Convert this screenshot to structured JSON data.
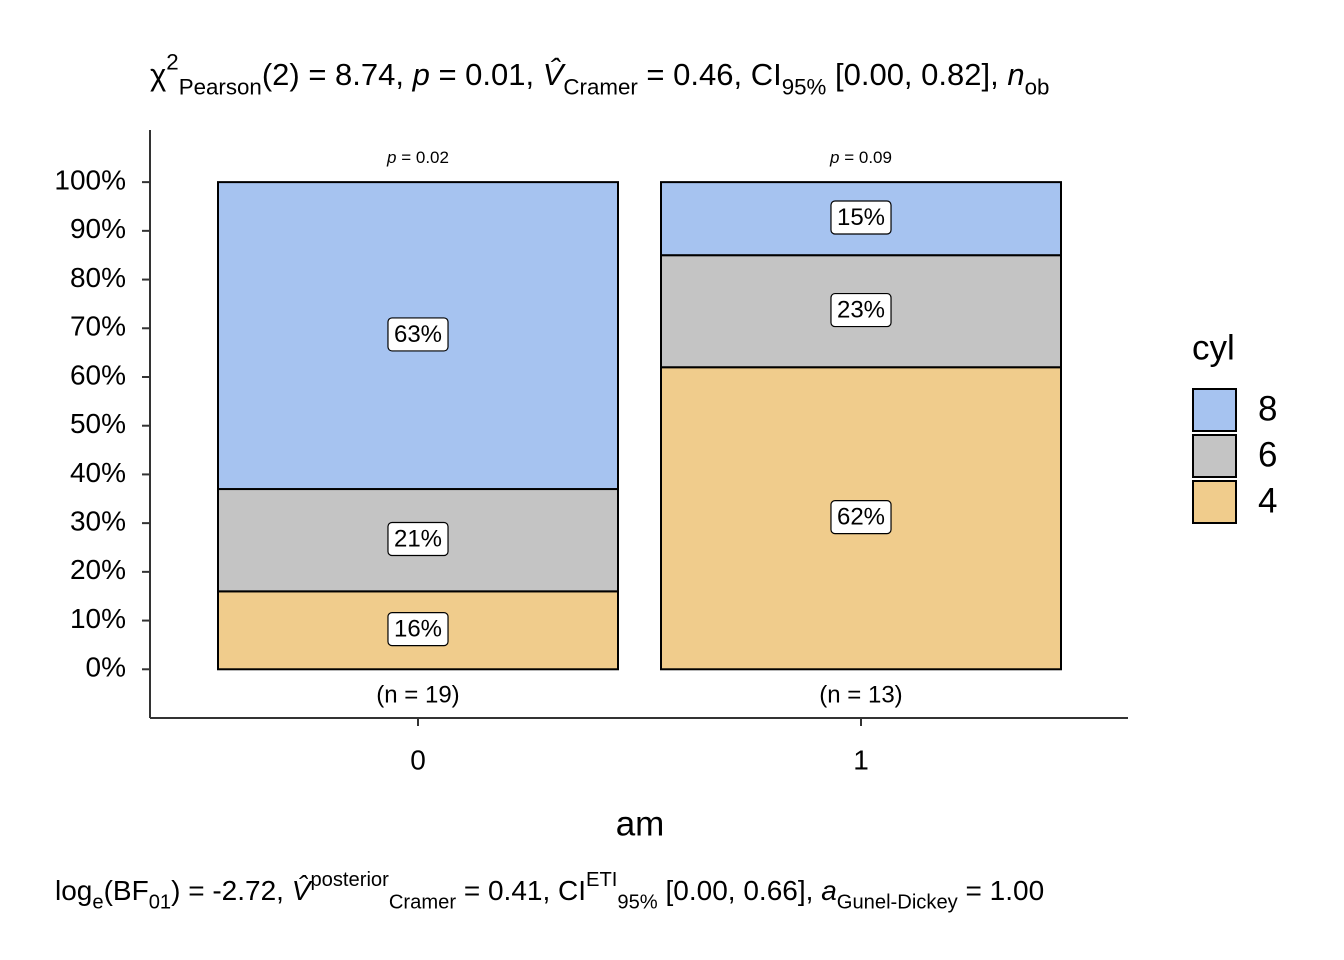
{
  "chart_data": {
    "type": "stacked_bar",
    "title": [
      {
        "text": "χ"
      },
      {
        "text": "2",
        "style": "sup"
      },
      {
        "text": "Pearson",
        "style": "sub"
      },
      {
        "text": "(2) = 8.74, "
      },
      {
        "text": "p",
        "style": "italic"
      },
      {
        "text": " = 0.01, "
      },
      {
        "text": "V̂",
        "style": "italic"
      },
      {
        "text": "Cramer",
        "style": "sub"
      },
      {
        "text": " = 0.46, CI"
      },
      {
        "text": "95%",
        "style": "sub"
      },
      {
        "text": " [0.00, 0.82], "
      },
      {
        "text": "n",
        "style": "italic"
      },
      {
        "text": "ob",
        "style": "sub"
      }
    ],
    "subtitle": [
      {
        "text": "log"
      },
      {
        "text": "e",
        "style": "sub"
      },
      {
        "text": "(BF"
      },
      {
        "text": "01",
        "style": "sub"
      },
      {
        "text": ") = -2.72, "
      },
      {
        "text": "V̂",
        "style": "italic"
      },
      {
        "text": "posterior",
        "style": "sup"
      },
      {
        "text": "Cramer",
        "style": "sub"
      },
      {
        "text": " = 0.41, CI"
      },
      {
        "text": "ETI",
        "style": "sup"
      },
      {
        "text": "95%",
        "style": "sub"
      },
      {
        "text": " [0.00, 0.66], "
      },
      {
        "text": "a",
        "style": "italic"
      },
      {
        "text": "Gunel-Dickey",
        "style": "sub"
      },
      {
        "text": " = 1.00"
      }
    ],
    "x_label": "am",
    "categories": [
      "0",
      "1"
    ],
    "top_annotations": [
      [
        {
          "text": "p",
          "style": "italic"
        },
        {
          "text": " = 0.02"
        }
      ],
      [
        {
          "text": "p",
          "style": "italic"
        },
        {
          "text": " = 0.09"
        }
      ]
    ],
    "n_labels": [
      "(n = 19)",
      "(n = 13)"
    ],
    "legend_title": "cyl",
    "series": [
      {
        "name": "8",
        "color": "#a6c3f0",
        "values": [
          63,
          15
        ],
        "value_labels": [
          "63%",
          "15%"
        ]
      },
      {
        "name": "6",
        "color": "#c4c4c4",
        "values": [
          21,
          23
        ],
        "value_labels": [
          "21%",
          "23%"
        ]
      },
      {
        "name": "4",
        "color": "#f0cc8c",
        "values": [
          16,
          62
        ],
        "value_labels": [
          "16%",
          "62%"
        ]
      }
    ],
    "ylim": [
      -10,
      110.7
    ],
    "yticks": [
      {
        "value": 0,
        "label": "0%"
      },
      {
        "value": 10,
        "label": "10%"
      },
      {
        "value": 20,
        "label": "20%"
      },
      {
        "value": 30,
        "label": "30%"
      },
      {
        "value": 40,
        "label": "40%"
      },
      {
        "value": 50,
        "label": "50%"
      },
      {
        "value": 60,
        "label": "60%"
      },
      {
        "value": 70,
        "label": "70%"
      },
      {
        "value": 80,
        "label": "80%"
      },
      {
        "value": 90,
        "label": "90%"
      },
      {
        "value": 100,
        "label": "100%"
      }
    ],
    "grid": false
  }
}
